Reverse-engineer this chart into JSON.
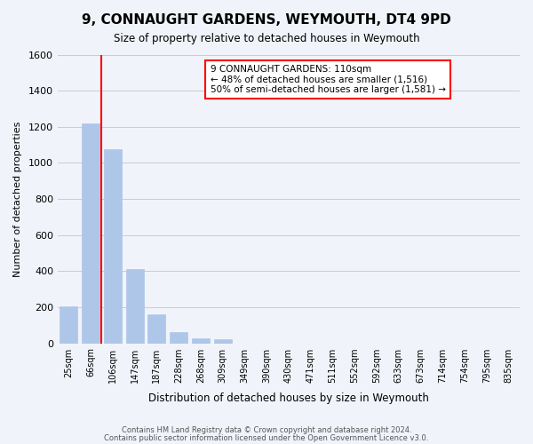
{
  "title": "9, CONNAUGHT GARDENS, WEYMOUTH, DT4 9PD",
  "subtitle": "Size of property relative to detached houses in Weymouth",
  "xlabel": "Distribution of detached houses by size in Weymouth",
  "ylabel": "Number of detached properties",
  "footer_lines": [
    "Contains HM Land Registry data © Crown copyright and database right 2024.",
    "Contains public sector information licensed under the Open Government Licence v3.0."
  ],
  "bins": [
    "25sqm",
    "66sqm",
    "106sqm",
    "147sqm",
    "187sqm",
    "228sqm",
    "268sqm",
    "309sqm",
    "349sqm",
    "390sqm",
    "430sqm",
    "471sqm",
    "511sqm",
    "552sqm",
    "592sqm",
    "633sqm",
    "673sqm",
    "714sqm",
    "754sqm",
    "795sqm",
    "835sqm"
  ],
  "values": [
    205,
    1220,
    1075,
    410,
    160,
    60,
    25,
    20,
    0,
    0,
    0,
    0,
    0,
    0,
    0,
    0,
    0,
    0,
    0,
    0,
    0
  ],
  "bar_color": "#aec6e8",
  "bar_edge_color": "#aec6e8",
  "grid_color": "#cccccc",
  "property_line_color": "red",
  "annotation_title": "9 CONNAUGHT GARDENS: 110sqm",
  "annotation_line1": "← 48% of detached houses are smaller (1,516)",
  "annotation_line2": "50% of semi-detached houses are larger (1,581) →",
  "annotation_box_color": "white",
  "annotation_box_edge": "red",
  "ylim": [
    0,
    1600
  ],
  "yticks": [
    0,
    200,
    400,
    600,
    800,
    1000,
    1200,
    1400,
    1600
  ],
  "bg_color": "#f0f4fa"
}
